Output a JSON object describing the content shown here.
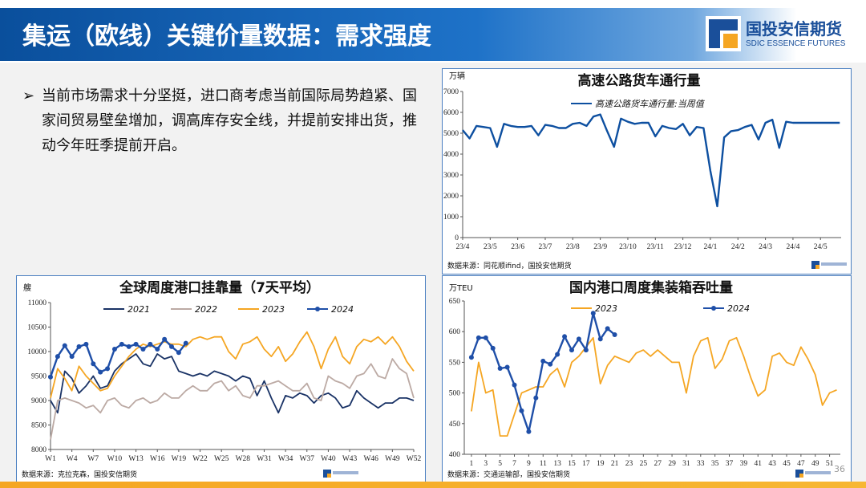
{
  "header": {
    "title": "集运（欧线）关键价量数据：需求强度",
    "logo_name": "国投安信期货",
    "logo_sub": "SDIC ESSENCE FUTURES"
  },
  "bullet": {
    "mark": "➢",
    "text": "当前市场需求十分坚挺，进口商考虑当前国际局势趋紧、国家间贸易壁垒增加，调高库存安全线，并提前安排出货，推动今年旺季提前开启。"
  },
  "page_number": "36",
  "colors": {
    "accent": "#0d4fa0",
    "y2023": "#f5a623",
    "y2021": "#1a3366",
    "y2022": "#bcaaa4",
    "y2024": "#1f4fa8"
  },
  "chart_data": [
    {
      "type": "line",
      "title": "高速公路货车通行量",
      "unit": "万辆",
      "source": "数据来源：同花顺ifind，国投安信期货",
      "legend": "top-center",
      "ylim": [
        0,
        7000
      ],
      "yticks": [
        0,
        1000,
        2000,
        3000,
        4000,
        5000,
        6000,
        7000
      ],
      "xticks": [
        "23/4",
        "23/5",
        "23/6",
        "23/7",
        "23/8",
        "23/9",
        "23/10",
        "23/11",
        "23/12",
        "24/1",
        "24/2",
        "24/3",
        "24/4",
        "24/5"
      ],
      "series": [
        {
          "name": "高速公路货车通行量:当周值",
          "x": [
            0,
            0.25,
            0.5,
            0.75,
            1,
            1.25,
            1.5,
            1.75,
            2,
            2.25,
            2.5,
            2.75,
            3,
            3.25,
            3.5,
            3.75,
            4,
            4.25,
            4.5,
            4.75,
            5,
            5.25,
            5.5,
            5.75,
            6,
            6.25,
            6.5,
            6.75,
            7,
            7.25,
            7.5,
            7.75,
            8,
            8.25,
            8.5,
            8.75,
            9,
            9.25,
            9.5,
            9.75,
            10,
            10.25,
            10.5,
            10.75,
            11,
            11.25,
            11.5,
            11.75,
            12,
            12.25,
            12.5,
            12.75,
            13,
            13.25,
            13.5,
            13.7
          ],
          "values": [
            5150,
            4750,
            5350,
            5300,
            5250,
            4350,
            5450,
            5350,
            5300,
            5300,
            5350,
            4900,
            5400,
            5350,
            5250,
            5250,
            5450,
            5500,
            5350,
            5800,
            5900,
            5100,
            4350,
            5700,
            5550,
            5450,
            5500,
            5500,
            4850,
            5350,
            5250,
            5200,
            5450,
            4900,
            5300,
            5250,
            3200,
            1500,
            4800,
            5100,
            5150,
            5300,
            5400,
            4700,
            5500,
            5650,
            4300,
            5550,
            5500,
            5500,
            5500,
            5500,
            5500,
            5500,
            5500,
            5500
          ]
        }
      ]
    },
    {
      "type": "line",
      "title": "全球周度港口挂靠量（7天平均）",
      "unit": "艘",
      "source": "数据来源：克拉克森，国投安信期货",
      "legend": "top",
      "ylim": [
        8000,
        11000
      ],
      "yticks": [
        8000,
        8500,
        9000,
        9500,
        10000,
        10500,
        11000
      ],
      "xticks": [
        "W1",
        "W4",
        "W7",
        "W10",
        "W13",
        "W16",
        "W19",
        "W22",
        "W25",
        "W28",
        "W31",
        "W34",
        "W37",
        "W40",
        "W43",
        "W46",
        "W49",
        "W52"
      ],
      "series": [
        {
          "name": "2021",
          "x": [
            1,
            2,
            3,
            4,
            5,
            6,
            7,
            8,
            9,
            10,
            11,
            12,
            13,
            14,
            15,
            16,
            17,
            18,
            19,
            20,
            21,
            22,
            23,
            24,
            25,
            26,
            27,
            28,
            29,
            30,
            31,
            32,
            33,
            34,
            35,
            36,
            37,
            38,
            39,
            40,
            41,
            42,
            43,
            44,
            45,
            46,
            47,
            48,
            49,
            50,
            51,
            52
          ],
          "values": [
            9000,
            8750,
            9600,
            9450,
            9150,
            9300,
            9500,
            9250,
            9300,
            9600,
            9750,
            9850,
            9950,
            9750,
            9700,
            9950,
            9850,
            9900,
            9600,
            9550,
            9500,
            9550,
            9500,
            9600,
            9550,
            9500,
            9400,
            9500,
            9450,
            9100,
            9400,
            9050,
            8750,
            9100,
            9050,
            9150,
            9100,
            8950,
            9100,
            9150,
            9050,
            8850,
            8900,
            9200,
            9050,
            8950,
            8850,
            8950,
            8950,
            9050,
            9050,
            9000
          ]
        },
        {
          "name": "2022",
          "x": [
            1,
            2,
            3,
            4,
            5,
            6,
            7,
            8,
            9,
            10,
            11,
            12,
            13,
            14,
            15,
            16,
            17,
            18,
            19,
            20,
            21,
            22,
            23,
            24,
            25,
            26,
            27,
            28,
            29,
            30,
            31,
            32,
            33,
            34,
            35,
            36,
            37,
            38,
            39,
            40,
            41,
            42,
            43,
            44,
            45,
            46,
            47,
            48,
            49,
            50,
            51,
            52
          ],
          "values": [
            8200,
            9000,
            9050,
            9000,
            8950,
            8850,
            8900,
            8750,
            9000,
            9050,
            8900,
            8850,
            9000,
            9050,
            8950,
            9000,
            9150,
            9050,
            9050,
            9200,
            9300,
            9200,
            9200,
            9350,
            9400,
            9200,
            9300,
            9100,
            9050,
            9300,
            9300,
            9350,
            9400,
            9300,
            9200,
            9200,
            9350,
            9050,
            9000,
            9500,
            9400,
            9350,
            9250,
            9500,
            9550,
            9750,
            9500,
            9450,
            9850,
            9650,
            9550,
            9050
          ]
        },
        {
          "name": "2023",
          "x": [
            1,
            2,
            3,
            4,
            5,
            6,
            7,
            8,
            9,
            10,
            11,
            12,
            13,
            14,
            15,
            16,
            17,
            18,
            19,
            20,
            21,
            22,
            23,
            24,
            25,
            26,
            27,
            28,
            29,
            30,
            31,
            32,
            33,
            34,
            35,
            36,
            37,
            38,
            39,
            40,
            41,
            42,
            43,
            44,
            45,
            46,
            47,
            48,
            49,
            50,
            51,
            52
          ],
          "values": [
            9050,
            9650,
            9450,
            9200,
            9700,
            9500,
            9350,
            9200,
            9250,
            9500,
            9700,
            9900,
            10050,
            10150,
            10100,
            10150,
            10200,
            10150,
            10150,
            10100,
            10250,
            10300,
            10250,
            10300,
            10300,
            10000,
            9850,
            10150,
            10200,
            10300,
            10050,
            9900,
            10100,
            9800,
            9950,
            10200,
            10400,
            10100,
            9650,
            10050,
            10300,
            9900,
            9750,
            10100,
            10250,
            10200,
            10300,
            10150,
            10300,
            10100,
            9800,
            9600
          ]
        },
        {
          "name": "2024",
          "x": [
            1,
            2,
            3,
            4,
            5,
            6,
            7,
            8,
            9,
            10,
            11,
            12,
            13,
            14,
            15,
            16,
            17,
            18,
            19,
            20
          ],
          "values": [
            9480,
            9900,
            10120,
            9900,
            10100,
            10150,
            9750,
            9580,
            9650,
            10050,
            10150,
            10100,
            10150,
            10050,
            10150,
            10050,
            10250,
            10100,
            9980,
            10170
          ]
        }
      ]
    },
    {
      "type": "line",
      "title": "国内港口周度集装箱吞吐量",
      "unit": "万TEU",
      "source": "数据来源：交通运输部，国投安信期货",
      "legend": "top",
      "ylim": [
        400,
        650
      ],
      "yticks": [
        400,
        450,
        500,
        550,
        600,
        650
      ],
      "xticks": [
        "1",
        "3",
        "5",
        "7",
        "9",
        "11",
        "13",
        "15",
        "17",
        "19",
        "21",
        "23",
        "25",
        "27",
        "29",
        "31",
        "33",
        "35",
        "37",
        "39",
        "41",
        "43",
        "45",
        "47",
        "49",
        "51"
      ],
      "series": [
        {
          "name": "2023",
          "x": [
            1,
            2,
            3,
            4,
            5,
            6,
            7,
            8,
            9,
            10,
            11,
            12,
            13,
            14,
            15,
            16,
            17,
            18,
            19,
            20,
            21,
            22,
            23,
            24,
            25,
            26,
            27,
            28,
            29,
            30,
            31,
            32,
            33,
            34,
            35,
            36,
            37,
            38,
            39,
            40,
            41,
            42,
            43,
            44,
            45,
            46,
            47,
            48,
            49,
            50,
            51,
            52
          ],
          "values": [
            470,
            550,
            500,
            505,
            430,
            430,
            465,
            500,
            505,
            510,
            510,
            530,
            540,
            510,
            550,
            560,
            575,
            590,
            515,
            545,
            560,
            555,
            550,
            565,
            570,
            560,
            570,
            560,
            550,
            550,
            500,
            560,
            585,
            590,
            540,
            555,
            585,
            590,
            560,
            525,
            495,
            505,
            560,
            565,
            550,
            545,
            575,
            555,
            530,
            480,
            500,
            505
          ]
        },
        {
          "name": "2024",
          "x": [
            1,
            2,
            3,
            4,
            5,
            6,
            7,
            8,
            9,
            10,
            11,
            12,
            13,
            14,
            15,
            16,
            17,
            18,
            19,
            20,
            21
          ],
          "values": [
            558,
            590,
            590,
            573,
            540,
            542,
            513,
            471,
            437,
            492,
            552,
            547,
            563,
            592,
            570,
            588,
            570,
            630,
            588,
            605,
            595
          ]
        }
      ]
    }
  ]
}
